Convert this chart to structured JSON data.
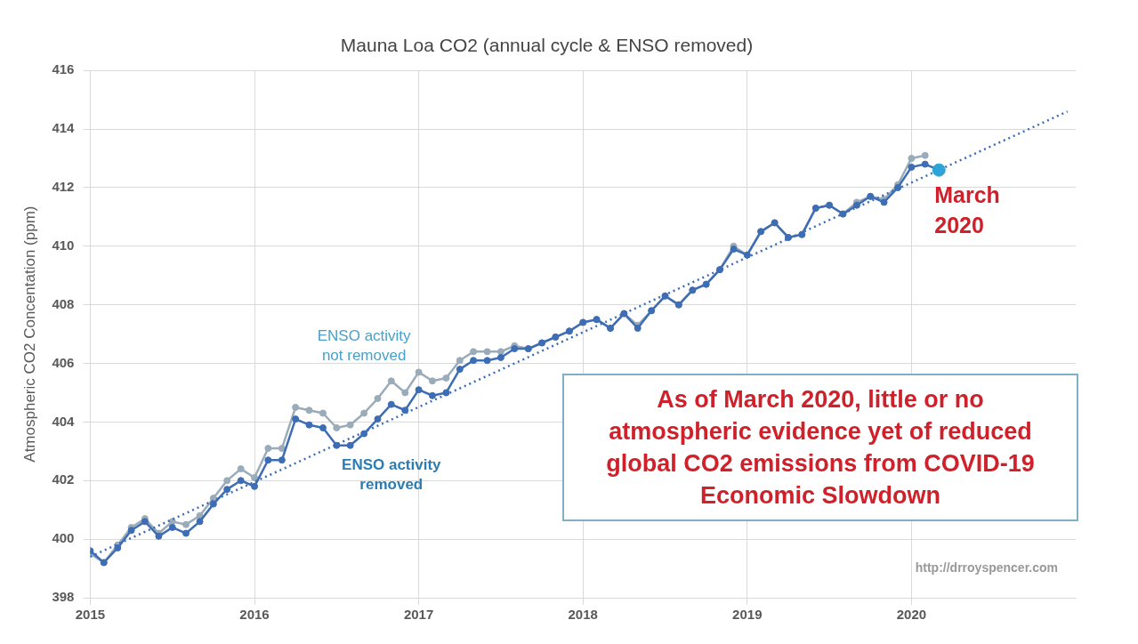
{
  "chart_data": {
    "type": "line",
    "title": "Mauna Loa CO2 (annual cycle & ENSO removed)",
    "ylabel": "Atmospheric CO2 Concentation (ppm)",
    "x": [
      2015,
      2015.083,
      2015.167,
      2015.25,
      2015.333,
      2015.417,
      2015.5,
      2015.583,
      2015.667,
      2015.75,
      2015.833,
      2015.917,
      2016,
      2016.083,
      2016.167,
      2016.25,
      2016.333,
      2016.417,
      2016.5,
      2016.583,
      2016.667,
      2016.75,
      2016.833,
      2016.917,
      2017,
      2017.083,
      2017.167,
      2017.25,
      2017.333,
      2017.417,
      2017.5,
      2017.583,
      2017.667,
      2017.75,
      2017.833,
      2017.917,
      2018,
      2018.083,
      2018.167,
      2018.25,
      2018.333,
      2018.417,
      2018.5,
      2018.583,
      2018.667,
      2018.75,
      2018.833,
      2018.917,
      2019,
      2019.083,
      2019.167,
      2019.25,
      2019.333,
      2019.417,
      2019.5,
      2019.583,
      2019.667,
      2019.75,
      2019.833,
      2019.917,
      2020,
      2020.083,
      2020.167
    ],
    "series": [
      {
        "name": "ENSO activity not removed",
        "color": "#9aabb9",
        "values": [
          399.5,
          399.2,
          399.8,
          400.4,
          400.7,
          400.2,
          400.6,
          400.5,
          400.8,
          401.4,
          402.0,
          402.4,
          402.1,
          403.1,
          403.1,
          404.5,
          404.4,
          404.3,
          403.8,
          403.9,
          404.3,
          404.8,
          405.4,
          405.0,
          405.7,
          405.4,
          405.5,
          406.1,
          406.4,
          406.4,
          406.4,
          406.6,
          406.5,
          406.7,
          406.9,
          407.1,
          407.4,
          407.5,
          407.2,
          407.7,
          407.3,
          407.8,
          408.3,
          408.0,
          408.5,
          408.7,
          409.2,
          410.0,
          409.7,
          410.5,
          410.8,
          410.3,
          410.4,
          411.3,
          411.4,
          411.1,
          411.5,
          411.7,
          411.6,
          412.1,
          413.0,
          413.1,
          null
        ]
      },
      {
        "name": "ENSO activity removed",
        "color": "#3d6db5",
        "values": [
          399.6,
          399.2,
          399.7,
          400.3,
          400.6,
          400.1,
          400.4,
          400.2,
          400.6,
          401.2,
          401.7,
          402.0,
          401.8,
          402.7,
          402.7,
          404.1,
          403.9,
          403.8,
          403.2,
          403.2,
          403.6,
          404.1,
          404.6,
          404.4,
          405.1,
          404.9,
          405.0,
          405.8,
          406.1,
          406.1,
          406.2,
          406.5,
          406.5,
          406.7,
          406.9,
          407.1,
          407.4,
          407.5,
          407.2,
          407.7,
          407.2,
          407.8,
          408.3,
          408.0,
          408.5,
          408.7,
          409.2,
          409.9,
          409.7,
          410.5,
          410.8,
          410.3,
          410.4,
          411.3,
          411.4,
          411.1,
          411.4,
          411.7,
          411.5,
          412.0,
          412.7,
          412.8,
          412.6
        ]
      },
      {
        "type": "line",
        "color": "#3d6db5",
        "line_style": "dotted",
        "marker": "none",
        "x": [
          2015,
          2020.95
        ],
        "values": [
          399.4,
          414.6
        ]
      },
      {
        "type": "scatter",
        "color": "#2ea3d8",
        "x": [
          2020.167
        ],
        "values": [
          412.6
        ]
      }
    ],
    "xlim": [
      2015,
      2021
    ],
    "xticks": [
      2015,
      2016,
      2017,
      2018,
      2019,
      2020
    ],
    "ylim": [
      398,
      416
    ],
    "yticks": [
      398,
      400,
      402,
      404,
      406,
      408,
      410,
      412,
      414,
      416
    ],
    "grid": true,
    "legend": false,
    "marker": "circle",
    "line_style": "solid",
    "annotations": [
      {
        "text": "March 2020",
        "x": 2020.167,
        "y": 412.6
      },
      "As of March 2020, little or no atmospheric evidence yet of reduced global CO2 emissions from COVID-19 Economic Slowdown",
      "http://drroyspencer.com"
    ]
  }
}
